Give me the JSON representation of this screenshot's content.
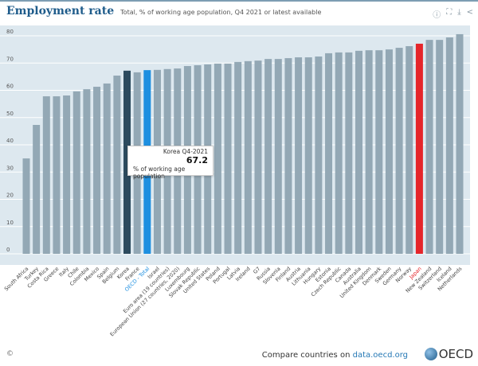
{
  "header": {
    "title": "Employment rate",
    "subtitle": "Total, % of working age population, Q4 2021 or latest available",
    "icons": [
      "info-icon",
      "fullscreen-icon",
      "download-icon",
      "share-icon"
    ]
  },
  "tooltip": {
    "label": "Korea Q4-2021",
    "value": "67.2",
    "unit": "% of working age population"
  },
  "footer": {
    "copyright": "©",
    "compare_text": "Compare countries on",
    "link": "data.oecd.org",
    "logo": "OECD"
  },
  "colors": {
    "default": "#93a8b5",
    "Korea": "#2c4a5e",
    "OECD - Total": "#1d8fe0",
    "Japan": "#e5252a",
    "background": "#dde8ef"
  },
  "chart_data": {
    "type": "bar",
    "title": "Employment rate",
    "subtitle": "Total, % of working age population, Q4 2021 or latest available",
    "ylim": [
      0,
      80
    ],
    "yticks": [
      0,
      10,
      20,
      30,
      40,
      50,
      60,
      70,
      80
    ],
    "grid": true,
    "highlighted": {
      "Korea": "selected",
      "OECD - Total": "reference",
      "Japan": "highlight"
    },
    "categories": [
      "South Africa",
      "Turkey",
      "Costa Rica",
      "Greece",
      "Italy",
      "Chile",
      "Colombia",
      "Mexico",
      "Spain",
      "Belgium",
      "Korea",
      "France",
      "OECD - Total",
      "Israel",
      "Euro area (19 countries)",
      "European Union (27 countries, 2020)",
      "Luxembourg",
      "Slovak Republic",
      "United States",
      "Poland",
      "Portugal",
      "Latvia",
      "Ireland",
      "G7",
      "Russia",
      "Slovenia",
      "Finland",
      "Austria",
      "Lithuania",
      "Hungary",
      "Estonia",
      "Czech Republic",
      "Canada",
      "Australia",
      "United Kingdom",
      "Denmark",
      "Sweden",
      "Germany",
      "Norway",
      "Japan",
      "New Zealand",
      "Switzerland",
      "Iceland",
      "Netherlands"
    ],
    "values": [
      35.0,
      47.3,
      57.8,
      57.8,
      58.1,
      59.6,
      60.4,
      61.3,
      62.5,
      65.4,
      67.2,
      66.6,
      67.4,
      67.5,
      67.8,
      68.0,
      68.9,
      69.2,
      69.5,
      69.8,
      69.8,
      70.4,
      70.7,
      70.9,
      71.5,
      71.5,
      71.8,
      72.1,
      72.1,
      72.4,
      73.6,
      73.9,
      73.9,
      74.5,
      74.7,
      74.7,
      75.0,
      75.6,
      76.2,
      77.1,
      78.5,
      78.5,
      79.4,
      80.6
    ]
  }
}
